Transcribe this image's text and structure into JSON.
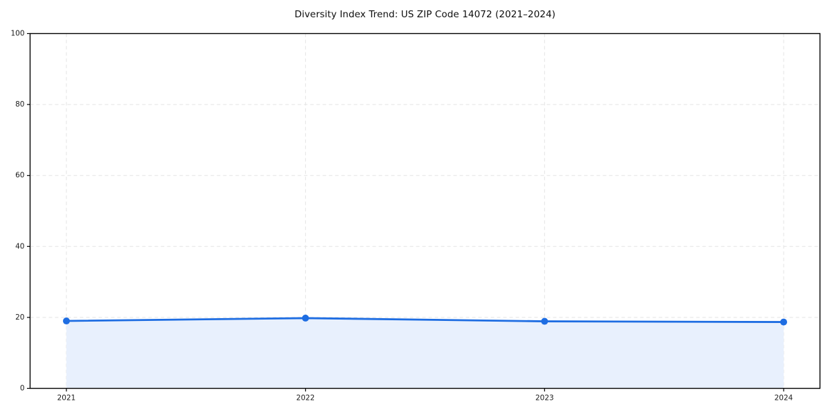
{
  "chart_data": {
    "type": "line",
    "title": "Diversity Index Trend: US ZIP Code 14072 (2021–2024)",
    "x": [
      "2021",
      "2022",
      "2023",
      "2024"
    ],
    "series": [
      {
        "name": "Diversity Index",
        "values": [
          19.0,
          19.8,
          18.9,
          18.7
        ]
      }
    ],
    "xlabel": "",
    "ylabel": "",
    "ylim": [
      0,
      100
    ],
    "yticks": [
      0,
      20,
      40,
      60,
      80,
      100
    ],
    "grid": true,
    "grid_style": "dashed",
    "legend": false,
    "marker": "circle",
    "area_fill": true,
    "colors": {
      "line": "#1e6de2",
      "marker": "#1e6de2",
      "fill": "#e8f0fd",
      "grid": "#e3e3e3",
      "axis": "#000000",
      "tick_text": "#1a1a1a",
      "title_text": "#0d0d0d",
      "background": "#ffffff"
    }
  }
}
